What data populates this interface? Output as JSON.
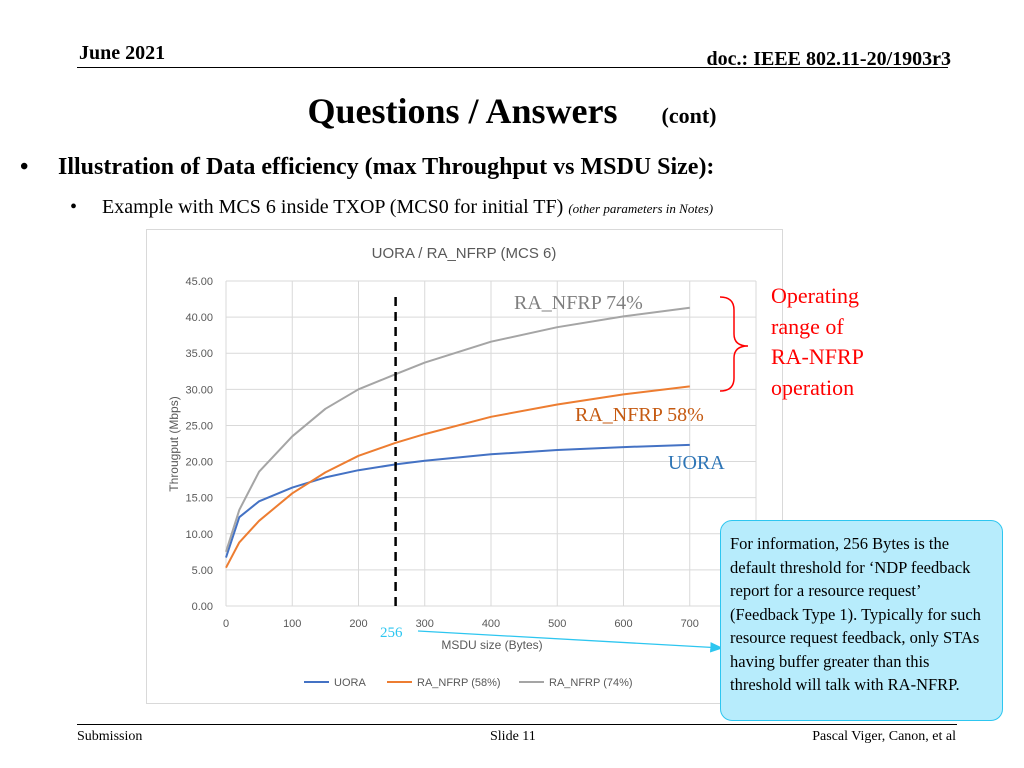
{
  "header": {
    "date": "June 2021",
    "doc": "doc.: IEEE 802.11-20/1903r3"
  },
  "title": {
    "main": "Questions / Answers",
    "sub": "(cont)"
  },
  "bullets": {
    "level1": "Illustration of  Data efficiency (max Throughput vs MSDU Size):",
    "level2": "Example with MCS 6 inside TXOP (MCS0 for initial TF)",
    "level2_note": "(other parameters in Notes)"
  },
  "annotations": {
    "ra74": "RA_NFRP 74%",
    "ra58": "RA_NFRP 58%",
    "uora": "UORA",
    "threshold": "256",
    "operating_range": [
      "Operating",
      "range of",
      "RA-NFRP",
      "operation"
    ],
    "info": "For information, 256 Bytes is the default threshold for ‘NDP feedback report for a resource request’ (Feedback Type 1). Typically for such resource request feedback, only STAs having buffer greater than this threshold will talk with RA-NFRP."
  },
  "footer": {
    "left": "Submission",
    "center": "Slide 11",
    "right": "Pascal Viger, Canon, et al"
  },
  "colors": {
    "uora": "#4472c4",
    "ra58": "#ed7d31",
    "ra74": "#a5a5a5",
    "ra58_label": "#c55a11",
    "uora_label": "#2e75b6",
    "callout": "#ff0000",
    "info_bg": "#b7ecfc",
    "info_border": "#2dc6f0"
  },
  "chart_data": {
    "type": "line",
    "title": "UORA / RA_NFRP (MCS 6)",
    "xlabel": "MSDU size (Bytes)",
    "ylabel": "Througput (Mbps)",
    "xlim": [
      0,
      800
    ],
    "ylim": [
      0,
      45
    ],
    "xticks": [
      "0",
      "100",
      "200",
      "300",
      "400",
      "500",
      "600",
      "700"
    ],
    "yticks": [
      "0.00",
      "5.00",
      "10.00",
      "15.00",
      "20.00",
      "25.00",
      "30.00",
      "35.00",
      "40.00",
      "45.00"
    ],
    "grid": true,
    "legend_position": "bottom",
    "vline_x": 256,
    "series": [
      {
        "name": "UORA",
        "x": [
          0,
          20,
          50,
          100,
          150,
          200,
          256,
          300,
          400,
          500,
          600,
          700
        ],
        "y": [
          6.7,
          12.3,
          14.5,
          16.4,
          17.8,
          18.8,
          19.6,
          20.1,
          21.0,
          21.6,
          22.0,
          22.3
        ]
      },
      {
        "name": "RA_NFRP (58%)",
        "x": [
          0,
          20,
          50,
          100,
          150,
          200,
          256,
          300,
          400,
          500,
          600,
          700
        ],
        "y": [
          5.3,
          8.8,
          11.8,
          15.6,
          18.5,
          20.8,
          22.6,
          23.8,
          26.2,
          27.9,
          29.3,
          30.4
        ]
      },
      {
        "name": "RA_NFRP (74%)",
        "x": [
          0,
          20,
          50,
          100,
          150,
          200,
          256,
          300,
          400,
          500,
          600,
          700
        ],
        "y": [
          7.5,
          13.3,
          18.6,
          23.5,
          27.3,
          30.0,
          32.1,
          33.7,
          36.6,
          38.6,
          40.1,
          41.3
        ]
      }
    ]
  }
}
